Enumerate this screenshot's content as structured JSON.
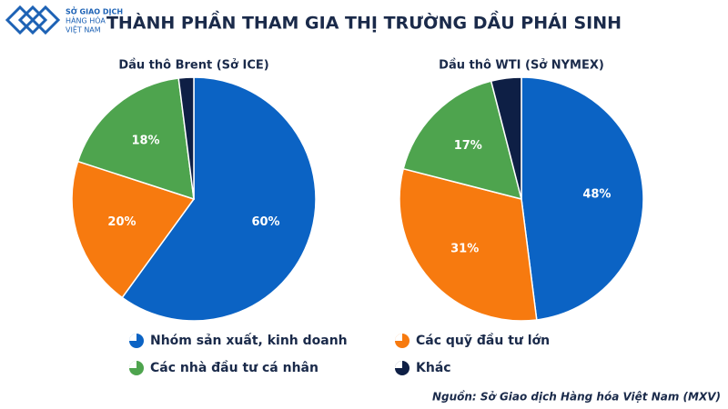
{
  "header": {
    "logo_lines": [
      "SỞ GIAO DỊCH",
      "HÀNG HÓA",
      "VIỆT NAM"
    ],
    "title": "THÀNH PHẦN THAM GIA THỊ TRƯỜNG DẦU PHÁI SINH"
  },
  "legend": {
    "items": [
      "Nhóm sản xuất, kinh doanh",
      "Các quỹ đầu tư lớn",
      "Các nhà đầu tư cá nhân",
      "Khác"
    ],
    "colors": [
      "#0b63c4",
      "#f77a0f",
      "#4ea44e",
      "#0e1f45"
    ]
  },
  "chart_data": [
    {
      "type": "pie",
      "title": "Dầu thô Brent (Sở ICE)",
      "values": [
        60,
        20,
        18,
        2
      ],
      "value_labels": [
        "60%",
        "20%",
        "18%",
        null
      ]
    },
    {
      "type": "pie",
      "title": "Dầu thô WTI (Sở NYMEX)",
      "values": [
        48,
        31,
        17,
        4
      ],
      "value_labels": [
        "48%",
        "31%",
        "17%",
        null
      ]
    }
  ],
  "source": "Nguồn: Sở Giao dịch Hàng hóa Việt Nam (MXV)"
}
